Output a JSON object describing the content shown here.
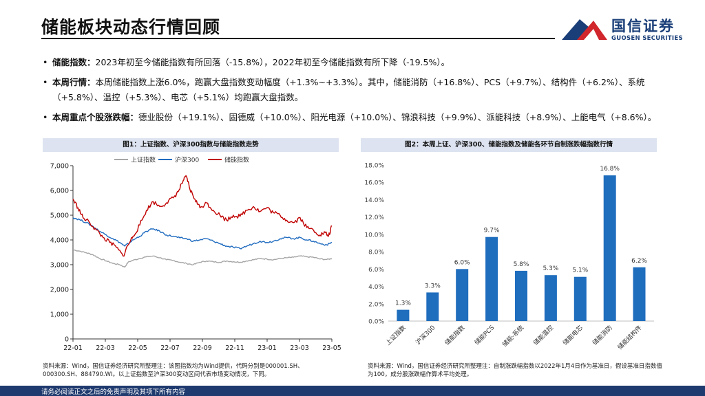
{
  "page": {
    "title": "储能板块动态行情回顾",
    "logo_cn": "国信证券",
    "logo_en": "GUOSEN SECURITIES",
    "footer": "请务必阅读正文之后的免责声明及其项下所有内容"
  },
  "bullets": [
    {
      "label": "储能指数：",
      "text": "2023年初至今储能指数有所回落（-15.8%），2022年初至今储能指数有所下降（-19.5%）。"
    },
    {
      "label": "本周行情：",
      "text": "本周储能指数上涨6.0%，跑赢大盘指数变动幅度（+1.3%~+3.3%）。其中，储能消防（+16.8%）、PCS（+9.7%）、结构件（+6.2%）、系统（+5.8%）、温控（+5.3%）、电芯（+5.1%）均跑赢大盘指数。"
    },
    {
      "label": "本周重点个股涨跌幅：",
      "text": "德业股份（+19.1%）、固德威（+10.0%）、阳光电源（+10.0%）、锦浪科技（+9.9%）、派能科技（+8.9%）、上能电气（+8.6%）。"
    }
  ],
  "colors": {
    "shanghai": "#a6a6a6",
    "hs300": "#1f6bbf",
    "storage": "#c00000",
    "bar": "#1f6dbd",
    "brand_blue": "#1a3e78",
    "brand_red": "#d0262c"
  },
  "figure1": {
    "header": "图1：上证指数、沪深300指数与储能指数走势",
    "source": "资料来源：Wind，国信证券经济研究所整理注：该图指数均为Wind提供，代码分别是000001.SH、000300.SH、884790.WI。以上证指数至沪深300变动区间代表市场变动情况，下同。"
  },
  "figure2": {
    "header": "图2：本周上证、沪深300、储能指数及储能各环节自制涨跌幅指数行情",
    "source": "资料来源：Wind，国信证券经济研究所整理注：自制涨跌幅指数以2022年1月4日作为基准日，假设基准日指数值为100，成分股涨跌幅作算术平均处理。"
  },
  "chart_data": [
    {
      "type": "line",
      "title": "图1：上证指数、沪深300指数与储能指数走势",
      "x_tick_labels": [
        "22-01",
        "22-03",
        "22-05",
        "22-07",
        "22-09",
        "22-11",
        "23-01",
        "23-03",
        "23-05"
      ],
      "ylim": [
        0,
        7000
      ],
      "y_ticks": [
        0,
        1000,
        2000,
        3000,
        4000,
        5000,
        6000,
        7000
      ],
      "y_tick_labels": [
        "0",
        "1,000",
        "2,000",
        "3,000",
        "4,000",
        "5,000",
        "6,000",
        "7,000"
      ],
      "legend": "top",
      "series": [
        {
          "name": "上证指数",
          "color_key": "shanghai",
          "points": [
            [
              0,
              3600
            ],
            [
              0.4,
              3550
            ],
            [
              0.8,
              3480
            ],
            [
              1.2,
              3400
            ],
            [
              1.6,
              3250
            ],
            [
              2.0,
              3150
            ],
            [
              2.4,
              3050
            ],
            [
              2.8,
              3000
            ],
            [
              3.1,
              2900
            ],
            [
              3.3,
              3100
            ],
            [
              3.6,
              3180
            ],
            [
              4.0,
              3250
            ],
            [
              4.4,
              3320
            ],
            [
              4.8,
              3350
            ],
            [
              5.2,
              3280
            ],
            [
              5.6,
              3200
            ],
            [
              6.0,
              3170
            ],
            [
              6.4,
              3100
            ],
            [
              6.8,
              3050
            ],
            [
              7.2,
              3000
            ],
            [
              7.6,
              3100
            ],
            [
              8.0,
              3150
            ],
            [
              8.4,
              3120
            ],
            [
              8.8,
              3100
            ],
            [
              9.2,
              3150
            ],
            [
              9.6,
              3120
            ],
            [
              10.0,
              3100
            ],
            [
              10.4,
              3150
            ],
            [
              10.8,
              3200
            ],
            [
              11.2,
              3250
            ],
            [
              11.6,
              3230
            ],
            [
              12.0,
              3200
            ],
            [
              12.4,
              3250
            ],
            [
              12.8,
              3280
            ],
            [
              13.2,
              3300
            ],
            [
              13.6,
              3350
            ],
            [
              14.0,
              3320
            ],
            [
              14.4,
              3300
            ],
            [
              14.8,
              3230
            ],
            [
              15.2,
              3210
            ],
            [
              15.5,
              3250
            ]
          ]
        },
        {
          "name": "沪深300",
          "color_key": "hs300",
          "points": [
            [
              0,
              4900
            ],
            [
              0.4,
              4820
            ],
            [
              0.8,
              4700
            ],
            [
              1.2,
              4550
            ],
            [
              1.6,
              4350
            ],
            [
              2.0,
              4200
            ],
            [
              2.4,
              4050
            ],
            [
              2.8,
              3900
            ],
            [
              3.1,
              3750
            ],
            [
              3.3,
              3850
            ],
            [
              3.6,
              4000
            ],
            [
              4.0,
              4150
            ],
            [
              4.4,
              4350
            ],
            [
              4.8,
              4450
            ],
            [
              5.2,
              4350
            ],
            [
              5.6,
              4200
            ],
            [
              6.0,
              4150
            ],
            [
              6.4,
              4080
            ],
            [
              6.8,
              4050
            ],
            [
              7.2,
              3950
            ],
            [
              7.6,
              4000
            ],
            [
              8.0,
              4050
            ],
            [
              8.4,
              3950
            ],
            [
              8.8,
              3850
            ],
            [
              9.2,
              3750
            ],
            [
              9.6,
              3700
            ],
            [
              10.0,
              3650
            ],
            [
              10.4,
              3750
            ],
            [
              10.8,
              3850
            ],
            [
              11.2,
              3950
            ],
            [
              11.6,
              3900
            ],
            [
              12.0,
              3950
            ],
            [
              12.4,
              4050
            ],
            [
              12.8,
              4100
            ],
            [
              13.2,
              4050
            ],
            [
              13.6,
              4100
            ],
            [
              14.0,
              4000
            ],
            [
              14.4,
              3950
            ],
            [
              14.8,
              3850
            ],
            [
              15.2,
              3800
            ],
            [
              15.5,
              3900
            ]
          ]
        },
        {
          "name": "储能指数",
          "color_key": "storage",
          "points": [
            [
              0,
              5650
            ],
            [
              0.3,
              5300
            ],
            [
              0.6,
              4900
            ],
            [
              1.0,
              4700
            ],
            [
              1.4,
              4400
            ],
            [
              1.8,
              4100
            ],
            [
              2.2,
              3900
            ],
            [
              2.6,
              3700
            ],
            [
              3.0,
              3350
            ],
            [
              3.3,
              3800
            ],
            [
              3.6,
              4150
            ],
            [
              4.0,
              4600
            ],
            [
              4.4,
              5200
            ],
            [
              4.8,
              5550
            ],
            [
              5.2,
              5350
            ],
            [
              5.6,
              5500
            ],
            [
              6.0,
              5700
            ],
            [
              6.3,
              5950
            ],
            [
              6.6,
              6400
            ],
            [
              6.8,
              6550
            ],
            [
              7.0,
              6050
            ],
            [
              7.3,
              5650
            ],
            [
              7.6,
              5300
            ],
            [
              8.0,
              5500
            ],
            [
              8.4,
              5200
            ],
            [
              8.8,
              5000
            ],
            [
              9.2,
              4800
            ],
            [
              9.6,
              5000
            ],
            [
              10.0,
              4950
            ],
            [
              10.4,
              5200
            ],
            [
              10.8,
              5350
            ],
            [
              11.2,
              5150
            ],
            [
              11.6,
              5300
            ],
            [
              12.0,
              5100
            ],
            [
              12.4,
              5000
            ],
            [
              12.8,
              4800
            ],
            [
              13.2,
              4700
            ],
            [
              13.6,
              4900
            ],
            [
              14.0,
              4500
            ],
            [
              14.4,
              4400
            ],
            [
              14.8,
              4200
            ],
            [
              15.1,
              4300
            ],
            [
              15.3,
              4150
            ],
            [
              15.5,
              4550
            ]
          ]
        }
      ]
    },
    {
      "type": "bar",
      "title": "图2：本周上证、沪深300、储能指数及储能各环节自制涨跌幅指数行情",
      "categories": [
        "上证指数",
        "沪深300",
        "储能指数",
        "储能PCS",
        "储能-系统",
        "储能温控",
        "储能电芯",
        "储能消防",
        "储能结构件"
      ],
      "values": [
        1.3,
        3.3,
        6.0,
        9.7,
        5.8,
        5.3,
        5.1,
        16.8,
        6.2
      ],
      "value_labels": [
        "1.3%",
        "3.3%",
        "6.0%",
        "9.7%",
        "5.8%",
        "5.3%",
        "5.1%",
        "16.8%",
        "6.2%"
      ],
      "ylim": [
        0,
        18
      ],
      "y_ticks": [
        0,
        2,
        4,
        6,
        8,
        10,
        12,
        14,
        16,
        18
      ],
      "y_tick_labels": [
        "0.0%",
        "2.0%",
        "4.0%",
        "6.0%",
        "8.0%",
        "10.0%",
        "12.0%",
        "14.0%",
        "16.0%",
        "18.0%"
      ]
    }
  ]
}
